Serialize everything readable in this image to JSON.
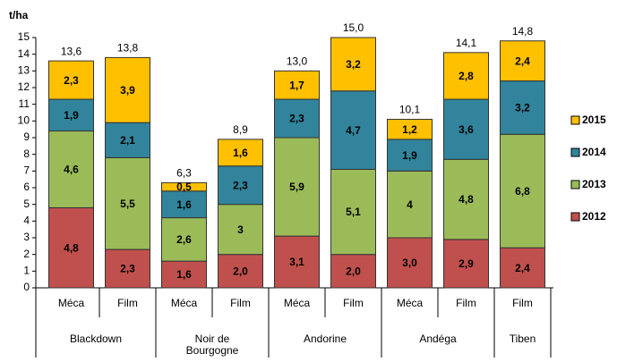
{
  "chart_data": {
    "type": "stacked_bar",
    "y_label": "t/ha",
    "ylim": [
      0,
      15
    ],
    "yticks": [
      0,
      1,
      2,
      3,
      4,
      5,
      6,
      7,
      8,
      9,
      10,
      11,
      12,
      13,
      14,
      15
    ],
    "groups": [
      {
        "name": "Blackdown",
        "categories": [
          "Méca",
          "Film"
        ]
      },
      {
        "name": "Noir de\nBourgogne",
        "categories": [
          "Méca",
          "Film"
        ]
      },
      {
        "name": "Andorine",
        "categories": [
          "Méca",
          "Film"
        ]
      },
      {
        "name": "Andéga",
        "categories": [
          "Méca",
          "Film"
        ]
      },
      {
        "name": "Tiben",
        "categories": [
          "Film"
        ]
      }
    ],
    "series": [
      {
        "name": "2012",
        "color": "#c0504d",
        "values": [
          4.8,
          2.3,
          1.6,
          2.0,
          3.1,
          2.0,
          3.0,
          2.9,
          2.4
        ],
        "value_labels": [
          "4,8",
          "2,3",
          "1,6",
          "2,0",
          "3,1",
          "2,0",
          "3,0",
          "2,9",
          "2,4"
        ]
      },
      {
        "name": "2013",
        "color": "#9bbb59",
        "values": [
          4.6,
          5.5,
          2.6,
          3,
          5.9,
          5.1,
          4,
          4.8,
          6.8
        ],
        "value_labels": [
          "4,6",
          "5,5",
          "2,6",
          "3",
          "5,9",
          "5,1",
          "4",
          "4,8",
          "6,8"
        ]
      },
      {
        "name": "2014",
        "color": "#31849b",
        "values": [
          1.9,
          2.1,
          1.6,
          2.3,
          2.3,
          4.7,
          1.9,
          3.6,
          3.2
        ],
        "value_labels": [
          "1,9",
          "2,1",
          "1,6",
          "2,3",
          "2,3",
          "4,7",
          "1,9",
          "3,6",
          "3,2"
        ]
      },
      {
        "name": "2015",
        "color": "#ffc000",
        "values": [
          2.3,
          3.9,
          0.5,
          1.6,
          1.7,
          3.2,
          1.2,
          2.8,
          2.4
        ],
        "value_labels": [
          "2,3",
          "3,9",
          "0,5",
          "1,6",
          "1,7",
          "3,2",
          "1,2",
          "2,8",
          "2,4"
        ]
      }
    ],
    "totals": [
      13.6,
      13.8,
      6.3,
      8.9,
      13.0,
      15.0,
      10.1,
      14.1,
      14.8
    ],
    "total_labels": [
      "13,6",
      "13,8",
      "6,3",
      "8,9",
      "13,0",
      "15,0",
      "10,1",
      "14,1",
      "14,8"
    ]
  }
}
